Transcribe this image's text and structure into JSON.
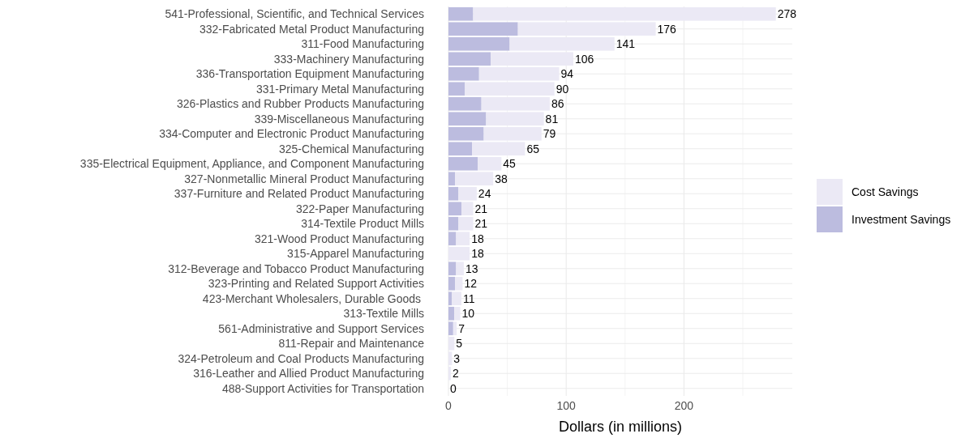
{
  "chart_data": {
    "type": "bar",
    "orientation": "horizontal",
    "stacked": true,
    "categories": [
      "541-Professional, Scientific, and Technical Services",
      "332-Fabricated Metal Product Manufacturing",
      "311-Food Manufacturing",
      "333-Machinery Manufacturing",
      "336-Transportation Equipment Manufacturing",
      "331-Primary Metal Manufacturing",
      "326-Plastics and Rubber Products Manufacturing",
      "339-Miscellaneous Manufacturing",
      "334-Computer and Electronic Product Manufacturing",
      "325-Chemical Manufacturing",
      "335-Electrical Equipment, Appliance, and Component Manufacturing",
      "327-Nonmetallic Mineral Product Manufacturing",
      "337-Furniture and Related Product Manufacturing",
      "322-Paper Manufacturing",
      "314-Textile Product Mills",
      "321-Wood Product Manufacturing",
      "315-Apparel Manufacturing",
      "312-Beverage and Tobacco Product Manufacturing",
      "323-Printing and Related Support Activities",
      "423-Merchant Wholesalers, Durable Goods ",
      "313-Textile Mills",
      "561-Administrative and Support Services",
      "811-Repair and Maintenance",
      "324-Petroleum and Coal Products Manufacturing",
      "316-Leather and Allied Product Manufacturing",
      "488-Support Activities for Transportation"
    ],
    "series": [
      {
        "name": "Investment Savings",
        "color": "#bcbcdf",
        "values": [
          21,
          59,
          52,
          36,
          26,
          14,
          28,
          32,
          30,
          20,
          25,
          5.5,
          8.5,
          11,
          8.5,
          6.5,
          null,
          6.5,
          5.5,
          3,
          5,
          4,
          null,
          0,
          0,
          0
        ]
      },
      {
        "name": "Cost Savings",
        "color": "#ebe9f5",
        "values": [
          257,
          117,
          89,
          70,
          68,
          76,
          58,
          49,
          49,
          45,
          20,
          32.5,
          15.5,
          10,
          12.5,
          11.5,
          18,
          6.5,
          6.5,
          8,
          5,
          3,
          5,
          3,
          2,
          0
        ]
      }
    ],
    "totals": [
      "278",
      "176",
      "141",
      "106",
      "94",
      "90",
      "86",
      "81",
      "79",
      "65",
      "45",
      "38",
      "24",
      "21",
      "21",
      "18",
      "18",
      "13",
      "12",
      "11",
      "10",
      "7",
      "5",
      "3",
      "2",
      "0"
    ],
    "xlabel": "Dollars (in millions)",
    "xlim": [
      0,
      292
    ],
    "xticks": [
      0,
      {
        "value": 50,
        "label": null
      },
      100,
      {
        "value": 150,
        "label": null
      },
      200,
      {
        "value": 250,
        "label": null
      }
    ],
    "grid": true,
    "legend": "right"
  }
}
